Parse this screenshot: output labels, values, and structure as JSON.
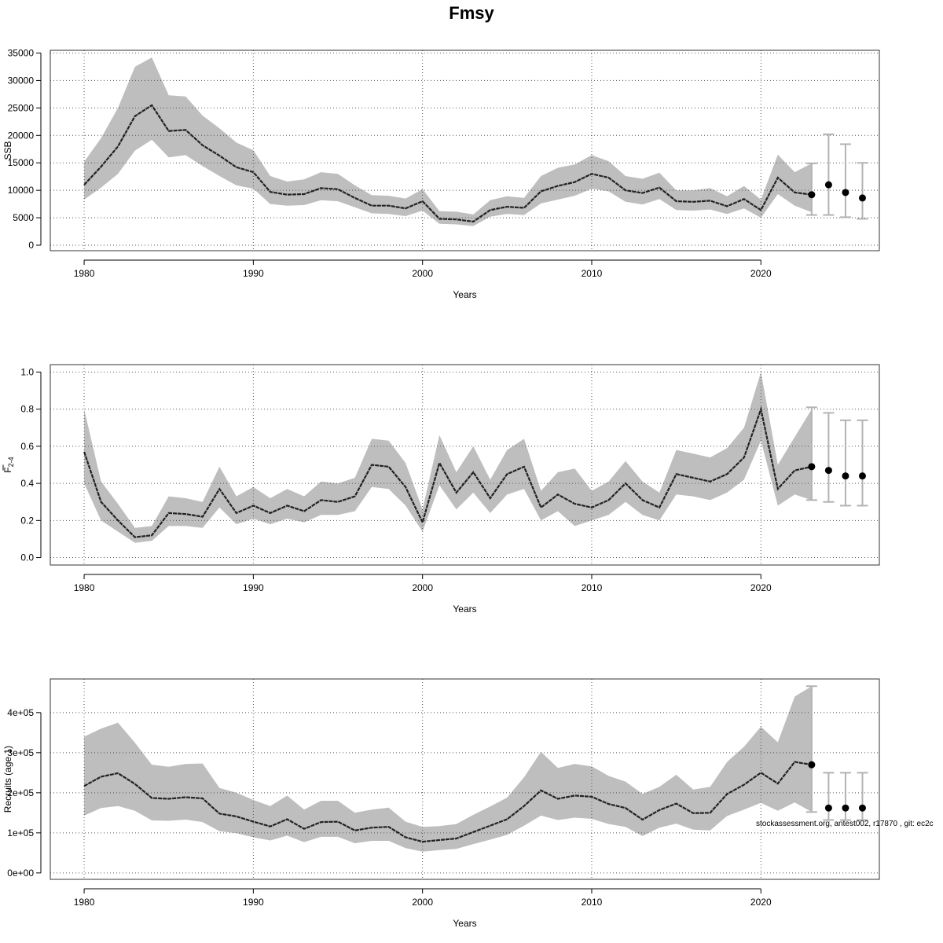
{
  "title": "Fmsy",
  "footnote": "stockassessment.org, antest002, r17870 , git: ec2c",
  "colors": {
    "band": "#bebebe",
    "line": "#222222",
    "grid": "#555555",
    "errorbar": "#b3b3b3",
    "point": "#000000"
  },
  "chart_data": [
    {
      "type": "line",
      "xlabel": "Years",
      "ylabel": "SSB",
      "xlim": [
        1978,
        2027
      ],
      "ylim": [
        -1000,
        35500
      ],
      "grid": true,
      "xticks": [
        1980,
        1990,
        2000,
        2010,
        2020
      ],
      "yticks": [
        0,
        5000,
        10000,
        15000,
        20000,
        25000,
        30000,
        35000
      ],
      "ytick_labels": [
        "0",
        "5000",
        "10000",
        "15000",
        "20000",
        "25000",
        "30000",
        "35000"
      ],
      "x": [
        1980,
        1981,
        1982,
        1983,
        1984,
        1985,
        1986,
        1987,
        1988,
        1989,
        1990,
        1991,
        1992,
        1993,
        1994,
        1995,
        1996,
        1997,
        1998,
        1999,
        2000,
        2001,
        2002,
        2003,
        2004,
        2005,
        2006,
        2007,
        2008,
        2009,
        2010,
        2011,
        2012,
        2013,
        2014,
        2015,
        2016,
        2017,
        2018,
        2019,
        2020,
        2021,
        2022,
        2023
      ],
      "estimate": [
        11000,
        14300,
        18000,
        23500,
        25500,
        20800,
        21000,
        18200,
        16300,
        14200,
        13300,
        9700,
        9200,
        9300,
        10400,
        10200,
        8600,
        7200,
        7200,
        6700,
        8000,
        4800,
        4700,
        4300,
        6400,
        7000,
        6800,
        9800,
        10800,
        11500,
        13000,
        12300,
        10000,
        9500,
        10500,
        8000,
        7900,
        8100,
        7100,
        8400,
        6400,
        12300,
        9600,
        9200
      ],
      "lower": [
        8300,
        10500,
        13000,
        17200,
        19200,
        16000,
        16400,
        14400,
        12600,
        10900,
        10300,
        7500,
        7200,
        7300,
        8200,
        8000,
        6900,
        5800,
        5700,
        5300,
        6300,
        3900,
        3800,
        3500,
        5200,
        5700,
        5500,
        7600,
        8300,
        9000,
        10300,
        9800,
        7900,
        7400,
        8400,
        6400,
        6300,
        6500,
        5700,
        6700,
        5000,
        9300,
        7200,
        6000
      ],
      "upper": [
        15200,
        19500,
        25000,
        32500,
        34200,
        27300,
        27100,
        23600,
        21300,
        18700,
        17300,
        12600,
        11600,
        12000,
        13300,
        13000,
        10900,
        9100,
        9000,
        8500,
        10200,
        6200,
        6100,
        5600,
        8200,
        8900,
        8600,
        12600,
        14100,
        14700,
        16400,
        15300,
        12600,
        12100,
        13200,
        10000,
        10000,
        10400,
        8900,
        10800,
        8300,
        16500,
        13300,
        14900
      ],
      "forecast": {
        "x": [
          2023,
          2024,
          2025,
          2026
        ],
        "median": [
          9200,
          11000,
          9600,
          8600
        ],
        "lower": [
          5500,
          5500,
          5100,
          4800
        ],
        "upper": [
          14900,
          20200,
          18400,
          15000
        ]
      }
    },
    {
      "type": "line",
      "xlabel": "Years",
      "ylabel": "F",
      "ylabel_sub": "2-4",
      "xlim": [
        1978,
        2027
      ],
      "ylim": [
        -0.04,
        1.04
      ],
      "grid": true,
      "xticks": [
        1980,
        1990,
        2000,
        2010,
        2020
      ],
      "yticks": [
        0,
        0.2,
        0.4,
        0.6,
        0.8,
        1.0
      ],
      "ytick_labels": [
        "0.0",
        "0.2",
        "0.4",
        "0.6",
        "0.8",
        "1.0"
      ],
      "x": [
        1980,
        1981,
        1982,
        1983,
        1984,
        1985,
        1986,
        1987,
        1988,
        1989,
        1990,
        1991,
        1992,
        1993,
        1994,
        1995,
        1996,
        1997,
        1998,
        1999,
        2000,
        2001,
        2002,
        2003,
        2004,
        2005,
        2006,
        2007,
        2008,
        2009,
        2010,
        2011,
        2012,
        2013,
        2014,
        2015,
        2016,
        2017,
        2018,
        2019,
        2020,
        2021,
        2022,
        2023
      ],
      "estimate": [
        0.57,
        0.3,
        0.2,
        0.11,
        0.12,
        0.24,
        0.235,
        0.22,
        0.37,
        0.24,
        0.28,
        0.24,
        0.28,
        0.25,
        0.31,
        0.3,
        0.33,
        0.5,
        0.49,
        0.38,
        0.19,
        0.51,
        0.35,
        0.46,
        0.32,
        0.45,
        0.49,
        0.27,
        0.34,
        0.29,
        0.27,
        0.31,
        0.4,
        0.31,
        0.27,
        0.45,
        0.43,
        0.41,
        0.45,
        0.54,
        0.8,
        0.37,
        0.47,
        0.49
      ],
      "lower": [
        0.4,
        0.2,
        0.14,
        0.08,
        0.09,
        0.17,
        0.17,
        0.16,
        0.27,
        0.18,
        0.21,
        0.18,
        0.21,
        0.19,
        0.23,
        0.23,
        0.25,
        0.38,
        0.37,
        0.28,
        0.14,
        0.39,
        0.26,
        0.35,
        0.24,
        0.34,
        0.37,
        0.2,
        0.25,
        0.17,
        0.2,
        0.23,
        0.3,
        0.23,
        0.2,
        0.34,
        0.33,
        0.31,
        0.35,
        0.42,
        0.63,
        0.28,
        0.34,
        0.31
      ],
      "upper": [
        0.8,
        0.41,
        0.29,
        0.16,
        0.17,
        0.33,
        0.32,
        0.3,
        0.49,
        0.33,
        0.38,
        0.32,
        0.37,
        0.33,
        0.41,
        0.4,
        0.43,
        0.64,
        0.63,
        0.51,
        0.26,
        0.66,
        0.46,
        0.6,
        0.42,
        0.58,
        0.64,
        0.36,
        0.46,
        0.48,
        0.36,
        0.41,
        0.52,
        0.41,
        0.35,
        0.58,
        0.56,
        0.54,
        0.59,
        0.7,
        1.0,
        0.5,
        0.65,
        0.8
      ],
      "forecast": {
        "x": [
          2023,
          2024,
          2025,
          2026
        ],
        "median": [
          0.49,
          0.47,
          0.44,
          0.44
        ],
        "lower": [
          0.31,
          0.3,
          0.28,
          0.28
        ],
        "upper": [
          0.81,
          0.78,
          0.74,
          0.74
        ]
      }
    },
    {
      "type": "line",
      "xlabel": "Years",
      "ylabel": "Recruits (age 1)",
      "xlim": [
        1978,
        2027
      ],
      "ylim": [
        -16000,
        484000
      ],
      "grid": true,
      "xticks": [
        1980,
        1990,
        2000,
        2010,
        2020
      ],
      "yticks": [
        0,
        100000,
        200000,
        300000,
        400000
      ],
      "ytick_labels": [
        "0e+00",
        "1e+05",
        "2e+05",
        "3e+05",
        "4e+05"
      ],
      "x": [
        1980,
        1981,
        1982,
        1983,
        1984,
        1985,
        1986,
        1987,
        1988,
        1989,
        1990,
        1991,
        1992,
        1993,
        1994,
        1995,
        1996,
        1997,
        1998,
        1999,
        2000,
        2001,
        2002,
        2003,
        2004,
        2005,
        2006,
        2007,
        2008,
        2009,
        2010,
        2011,
        2012,
        2013,
        2014,
        2015,
        2016,
        2017,
        2018,
        2019,
        2020,
        2021,
        2022,
        2023
      ],
      "estimate": [
        217000,
        240000,
        249000,
        222000,
        187000,
        185000,
        189000,
        186000,
        148000,
        141000,
        128000,
        116000,
        134000,
        110000,
        127000,
        128000,
        106000,
        113000,
        115000,
        89000,
        78000,
        82000,
        86000,
        102000,
        118000,
        134000,
        167000,
        206000,
        185000,
        193000,
        190000,
        172000,
        162000,
        133000,
        157000,
        173000,
        149000,
        150000,
        197000,
        220000,
        250000,
        223000,
        277000,
        270000
      ],
      "lower": [
        143000,
        162000,
        167000,
        155000,
        131000,
        130000,
        133000,
        127000,
        104000,
        99000,
        89000,
        81000,
        93000,
        77000,
        90000,
        90000,
        74000,
        80000,
        80000,
        62000,
        53000,
        57000,
        60000,
        72000,
        83000,
        95000,
        118000,
        143000,
        132000,
        138000,
        135000,
        122000,
        115000,
        92000,
        113000,
        123000,
        108000,
        106000,
        142000,
        158000,
        175000,
        155000,
        176000,
        152000
      ],
      "upper": [
        340000,
        360000,
        375000,
        325000,
        270000,
        265000,
        272000,
        273000,
        212000,
        200000,
        182000,
        167000,
        193000,
        158000,
        180000,
        180000,
        150000,
        158000,
        163000,
        128000,
        115000,
        117000,
        122000,
        145000,
        166000,
        188000,
        239000,
        302000,
        262000,
        272000,
        266000,
        242000,
        228000,
        197000,
        215000,
        245000,
        208000,
        215000,
        277000,
        315000,
        365000,
        326000,
        440000,
        466000
      ],
      "forecast": {
        "x": [
          2023,
          2024,
          2025,
          2026
        ],
        "median": [
          270000,
          162000,
          162000,
          162000
        ],
        "lower": [
          152000,
          132000,
          132000,
          132000
        ],
        "upper": [
          466000,
          250000,
          250000,
          250000
        ]
      }
    }
  ]
}
